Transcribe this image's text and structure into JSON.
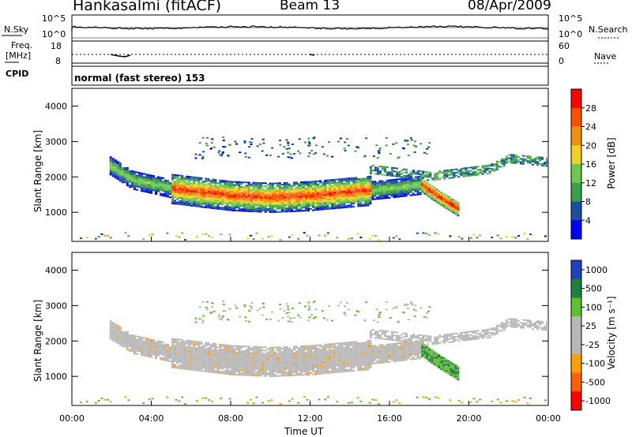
{
  "header": {
    "station": "Hankasalmi (fitACF)",
    "beam": "Beam 13",
    "date": "08/Apr/2009"
  },
  "top_panels": {
    "nsky": {
      "label": "N.Sky",
      "ticks": [
        "10^5",
        "10^0"
      ],
      "right_label": "N.Search",
      "right_ticks": [
        "10^5",
        "10^0"
      ]
    },
    "freq": {
      "label_line1": "Freq.",
      "label_line2": "[MHz]",
      "ticks": [
        "18",
        "8"
      ],
      "right_label": "Nave",
      "right_ticks": [
        "60",
        "0"
      ]
    },
    "cpid": {
      "label": "CPID",
      "value": "normal (fast stereo) 153"
    }
  },
  "colors": {
    "power_scale": [
      "#0000ff",
      "#1a4ea0",
      "#3aa048",
      "#6ec850",
      "#f0d020",
      "#f09010",
      "#ff5000",
      "#ff0000"
    ],
    "velocity_scale": [
      "#ff0000",
      "#ff6000",
      "#ffa000",
      "#b8b8b8",
      "#b8b8b8",
      "#60c030",
      "#208040",
      "#2040c0"
    ]
  },
  "chart_data": [
    {
      "type": "heatmap",
      "title": "Power",
      "xlabel": "Time UT",
      "ylabel": "Slant Range [km]",
      "xlim": [
        "00:00",
        "24:00"
      ],
      "ylim": [
        180,
        4500
      ],
      "x_ticks": [
        "00:00",
        "04:00",
        "08:00",
        "12:00",
        "16:00",
        "20:00",
        "00:00"
      ],
      "y_ticks": [
        "1000",
        "2000",
        "3000",
        "4000"
      ],
      "colorbar": {
        "label": "Power [dB]",
        "ticks": [
          "4",
          "8",
          "12",
          "16",
          "20",
          "24",
          "28"
        ],
        "range": [
          0,
          32
        ]
      },
      "bands": [
        {
          "name": "main echo band",
          "path_hours": [
            1.9,
            3.0,
            5.0,
            8.0,
            10.0,
            12.0,
            14.0,
            16.0,
            17.5
          ],
          "path_range_km": [
            2300,
            1900,
            1650,
            1450,
            1400,
            1450,
            1550,
            1650,
            1750
          ],
          "peak_power_db": 28
        },
        {
          "name": "late bright echo",
          "path_hours": [
            17.6,
            18.5,
            19.5
          ],
          "path_range_km": [
            1750,
            1400,
            1050
          ],
          "peak_power_db": 30
        },
        {
          "name": "upper weak band",
          "path_hours": [
            15.0,
            18.0,
            21.0,
            22.0,
            24.0
          ],
          "path_range_km": [
            2200,
            2000,
            2200,
            2500,
            2400
          ],
          "peak_power_db": 12
        }
      ]
    },
    {
      "type": "heatmap",
      "title": "Velocity",
      "xlabel": "Time UT",
      "ylabel": "Slant Range [km]",
      "xlim": [
        "00:00",
        "24:00"
      ],
      "ylim": [
        180,
        4500
      ],
      "x_ticks": [
        "00:00",
        "04:00",
        "08:00",
        "12:00",
        "16:00",
        "20:00",
        "00:00"
      ],
      "y_ticks": [
        "1000",
        "2000",
        "3000",
        "4000"
      ],
      "colorbar": {
        "label": "Velocity [m s⁻¹]",
        "ticks": [
          "1000",
          "500",
          "100",
          "25",
          "-25",
          "-100",
          "-500",
          "-1000"
        ]
      },
      "bands": [
        {
          "name": "main echo band",
          "dominant_velocity": "-25 to 25"
        },
        {
          "name": "late bright echo",
          "dominant_velocity": "100 to 500"
        }
      ]
    }
  ]
}
